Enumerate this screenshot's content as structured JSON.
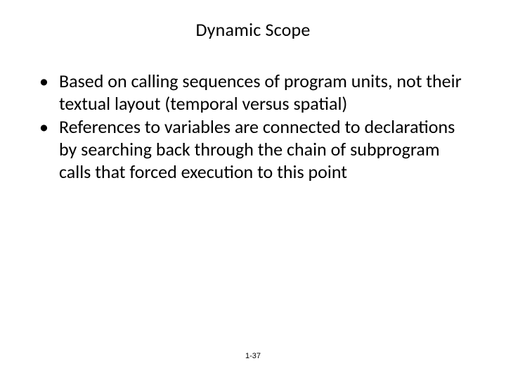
{
  "slide": {
    "title": "Dynamic Scope",
    "title_fontsize": 26,
    "body_fontsize": 26,
    "bullets": [
      "Based on calling sequences of program units, not their textual layout (temporal versus spatial)",
      "References to variables are connected to declarations by searching back through the chain of subprogram calls that forced execution to this point"
    ],
    "footer": "1-37",
    "footer_fontsize": 11,
    "background_color": "#ffffff",
    "text_color": "#000000"
  }
}
